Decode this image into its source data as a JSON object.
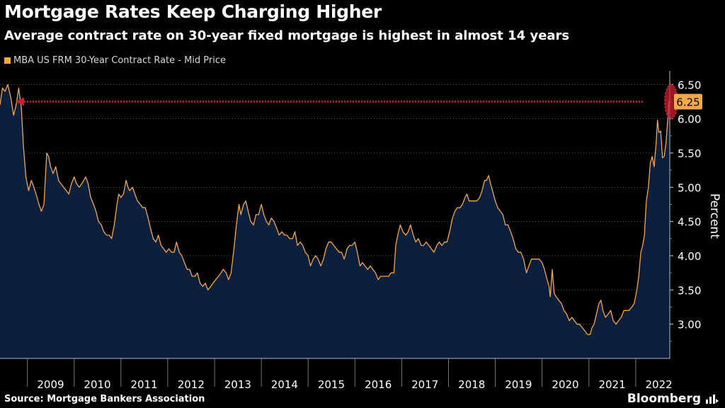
{
  "header": {
    "title": "Mortgage Rates Keep Charging Higher",
    "subtitle": "Average contract rate on 30-year fixed mortgage is highest in almost 14 years"
  },
  "legend": {
    "label": "MBA US FRM 30-Year Contract Rate - Mid Price",
    "color": "#f2a74b"
  },
  "footer": {
    "source": "Source: Mortgage Bankers Association",
    "brand": "Bloomberg",
    "brand_icon": "bloomberg-terminal-icon"
  },
  "colors": {
    "background": "#000000",
    "area_fill": "#0c1f3d",
    "line": "#f2a74b",
    "grid": "#5a5a5a",
    "annotation": "#cc1f2d",
    "last_value_badge": "#f2a74b"
  },
  "chart_data": {
    "type": "area",
    "title": "Mortgage Rates Keep Charging Higher",
    "ylabel": "Percent",
    "ylim": [
      2.5,
      6.7
    ],
    "yticks": [
      "3.00",
      "3.50",
      "4.00",
      "4.50",
      "5.00",
      "5.50",
      "6.00",
      "6.50"
    ],
    "xlim": [
      "2008-06-01",
      "2022-09-24"
    ],
    "xticks": [
      "2009",
      "2010",
      "2011",
      "2012",
      "2013",
      "2014",
      "2015",
      "2016",
      "2017",
      "2018",
      "2019",
      "2020",
      "2021",
      "2022"
    ],
    "grid": true,
    "last_value_label": "6.25",
    "annotation": "Arrow from the latest 6.25 reading back to the equal level in 2008, circled at the right edge",
    "series": [
      {
        "name": "MBA US FRM 30-Year Contract Rate - Mid Price",
        "points": [
          [
            "2008-06-01",
            6.2
          ],
          [
            "2008-06-20",
            6.45
          ],
          [
            "2008-07-10",
            6.4
          ],
          [
            "2008-08-01",
            6.5
          ],
          [
            "2008-08-25",
            6.3
          ],
          [
            "2008-09-15",
            6.05
          ],
          [
            "2008-10-05",
            6.2
          ],
          [
            "2008-10-25",
            6.45
          ],
          [
            "2008-11-15",
            6.15
          ],
          [
            "2008-12-01",
            5.6
          ],
          [
            "2008-12-20",
            5.15
          ],
          [
            "2009-01-10",
            4.95
          ],
          [
            "2009-02-01",
            5.1
          ],
          [
            "2009-02-20",
            5.0
          ],
          [
            "2009-03-10",
            4.9
          ],
          [
            "2009-04-01",
            4.75
          ],
          [
            "2009-04-20",
            4.65
          ],
          [
            "2009-05-10",
            4.75
          ],
          [
            "2009-06-01",
            5.5
          ],
          [
            "2009-06-15",
            5.45
          ],
          [
            "2009-07-01",
            5.3
          ],
          [
            "2009-07-20",
            5.2
          ],
          [
            "2009-08-10",
            5.3
          ],
          [
            "2009-09-01",
            5.1
          ],
          [
            "2009-09-20",
            5.05
          ],
          [
            "2009-10-10",
            5.0
          ],
          [
            "2009-11-01",
            4.95
          ],
          [
            "2009-11-20",
            4.9
          ],
          [
            "2009-12-10",
            5.05
          ],
          [
            "2010-01-01",
            5.15
          ],
          [
            "2010-01-20",
            5.05
          ],
          [
            "2010-02-10",
            5.0
          ],
          [
            "2010-03-01",
            5.05
          ],
          [
            "2010-04-01",
            5.15
          ],
          [
            "2010-04-20",
            5.05
          ],
          [
            "2010-05-10",
            4.85
          ],
          [
            "2010-06-01",
            4.75
          ],
          [
            "2010-06-20",
            4.65
          ],
          [
            "2010-07-10",
            4.5
          ],
          [
            "2010-08-01",
            4.45
          ],
          [
            "2010-08-20",
            4.35
          ],
          [
            "2010-09-10",
            4.3
          ],
          [
            "2010-10-01",
            4.3
          ],
          [
            "2010-10-20",
            4.25
          ],
          [
            "2010-11-10",
            4.45
          ],
          [
            "2010-12-01",
            4.75
          ],
          [
            "2010-12-15",
            4.9
          ],
          [
            "2011-01-01",
            4.85
          ],
          [
            "2011-01-20",
            4.9
          ],
          [
            "2011-02-10",
            5.1
          ],
          [
            "2011-02-25",
            5.0
          ],
          [
            "2011-03-10",
            4.95
          ],
          [
            "2011-04-01",
            5.0
          ],
          [
            "2011-04-20",
            4.9
          ],
          [
            "2011-05-10",
            4.8
          ],
          [
            "2011-06-01",
            4.75
          ],
          [
            "2011-06-20",
            4.7
          ],
          [
            "2011-07-10",
            4.7
          ],
          [
            "2011-08-01",
            4.55
          ],
          [
            "2011-08-20",
            4.4
          ],
          [
            "2011-09-10",
            4.25
          ],
          [
            "2011-10-01",
            4.2
          ],
          [
            "2011-10-20",
            4.3
          ],
          [
            "2011-11-10",
            4.15
          ],
          [
            "2011-12-01",
            4.1
          ],
          [
            "2011-12-20",
            4.05
          ],
          [
            "2012-01-10",
            4.1
          ],
          [
            "2012-02-01",
            4.05
          ],
          [
            "2012-02-20",
            4.05
          ],
          [
            "2012-03-10",
            4.2
          ],
          [
            "2012-04-01",
            4.05
          ],
          [
            "2012-04-20",
            4.0
          ],
          [
            "2012-05-10",
            3.9
          ],
          [
            "2012-06-01",
            3.8
          ],
          [
            "2012-06-20",
            3.8
          ],
          [
            "2012-07-10",
            3.7
          ],
          [
            "2012-08-01",
            3.7
          ],
          [
            "2012-08-20",
            3.75
          ],
          [
            "2012-09-10",
            3.6
          ],
          [
            "2012-10-01",
            3.55
          ],
          [
            "2012-10-20",
            3.6
          ],
          [
            "2012-11-10",
            3.5
          ],
          [
            "2012-12-01",
            3.55
          ],
          [
            "2012-12-20",
            3.6
          ],
          [
            "2013-01-10",
            3.65
          ],
          [
            "2013-02-01",
            3.7
          ],
          [
            "2013-02-20",
            3.75
          ],
          [
            "2013-03-10",
            3.8
          ],
          [
            "2013-04-01",
            3.75
          ],
          [
            "2013-04-20",
            3.65
          ],
          [
            "2013-05-10",
            3.75
          ],
          [
            "2013-06-01",
            4.1
          ],
          [
            "2013-06-20",
            4.45
          ],
          [
            "2013-07-10",
            4.75
          ],
          [
            "2013-07-25",
            4.6
          ],
          [
            "2013-08-15",
            4.75
          ],
          [
            "2013-09-01",
            4.8
          ],
          [
            "2013-09-20",
            4.65
          ],
          [
            "2013-10-10",
            4.5
          ],
          [
            "2013-11-01",
            4.45
          ],
          [
            "2013-11-20",
            4.6
          ],
          [
            "2013-12-10",
            4.6
          ],
          [
            "2014-01-01",
            4.75
          ],
          [
            "2014-01-20",
            4.6
          ],
          [
            "2014-02-10",
            4.5
          ],
          [
            "2014-03-01",
            4.45
          ],
          [
            "2014-03-20",
            4.55
          ],
          [
            "2014-04-10",
            4.5
          ],
          [
            "2014-05-01",
            4.4
          ],
          [
            "2014-05-20",
            4.3
          ],
          [
            "2014-06-10",
            4.35
          ],
          [
            "2014-07-01",
            4.3
          ],
          [
            "2014-07-20",
            4.3
          ],
          [
            "2014-08-10",
            4.25
          ],
          [
            "2014-09-01",
            4.25
          ],
          [
            "2014-09-20",
            4.35
          ],
          [
            "2014-10-10",
            4.15
          ],
          [
            "2014-11-01",
            4.2
          ],
          [
            "2014-11-20",
            4.15
          ],
          [
            "2014-12-10",
            4.05
          ],
          [
            "2015-01-01",
            4.0
          ],
          [
            "2015-01-20",
            3.85
          ],
          [
            "2015-02-10",
            3.95
          ],
          [
            "2015-03-01",
            4.0
          ],
          [
            "2015-03-20",
            3.95
          ],
          [
            "2015-04-10",
            3.85
          ],
          [
            "2015-05-01",
            3.95
          ],
          [
            "2015-05-20",
            4.1
          ],
          [
            "2015-06-10",
            4.2
          ],
          [
            "2015-07-01",
            4.2
          ],
          [
            "2015-07-20",
            4.15
          ],
          [
            "2015-08-10",
            4.1
          ],
          [
            "2015-09-01",
            4.05
          ],
          [
            "2015-09-20",
            4.05
          ],
          [
            "2015-10-10",
            3.95
          ],
          [
            "2015-11-01",
            4.1
          ],
          [
            "2015-11-20",
            4.15
          ],
          [
            "2015-12-10",
            4.15
          ],
          [
            "2016-01-01",
            4.2
          ],
          [
            "2016-01-20",
            4.05
          ],
          [
            "2016-02-10",
            3.85
          ],
          [
            "2016-03-01",
            3.9
          ],
          [
            "2016-03-20",
            3.85
          ],
          [
            "2016-04-10",
            3.8
          ],
          [
            "2016-05-01",
            3.85
          ],
          [
            "2016-05-20",
            3.8
          ],
          [
            "2016-06-10",
            3.75
          ],
          [
            "2016-07-01",
            3.65
          ],
          [
            "2016-07-20",
            3.7
          ],
          [
            "2016-08-10",
            3.7
          ],
          [
            "2016-09-01",
            3.7
          ],
          [
            "2016-09-20",
            3.7
          ],
          [
            "2016-10-10",
            3.75
          ],
          [
            "2016-11-01",
            3.75
          ],
          [
            "2016-11-15",
            4.15
          ],
          [
            "2016-12-01",
            4.3
          ],
          [
            "2016-12-20",
            4.45
          ],
          [
            "2017-01-10",
            4.35
          ],
          [
            "2017-02-01",
            4.3
          ],
          [
            "2017-02-20",
            4.35
          ],
          [
            "2017-03-10",
            4.45
          ],
          [
            "2017-04-01",
            4.3
          ],
          [
            "2017-04-20",
            4.2
          ],
          [
            "2017-05-10",
            4.25
          ],
          [
            "2017-06-01",
            4.15
          ],
          [
            "2017-06-20",
            4.15
          ],
          [
            "2017-07-10",
            4.2
          ],
          [
            "2017-08-01",
            4.15
          ],
          [
            "2017-08-20",
            4.1
          ],
          [
            "2017-09-10",
            4.05
          ],
          [
            "2017-10-01",
            4.15
          ],
          [
            "2017-10-20",
            4.2
          ],
          [
            "2017-11-10",
            4.15
          ],
          [
            "2017-12-01",
            4.2
          ],
          [
            "2017-12-20",
            4.2
          ],
          [
            "2018-01-10",
            4.35
          ],
          [
            "2018-02-01",
            4.55
          ],
          [
            "2018-02-20",
            4.65
          ],
          [
            "2018-03-10",
            4.7
          ],
          [
            "2018-04-01",
            4.7
          ],
          [
            "2018-04-20",
            4.75
          ],
          [
            "2018-05-10",
            4.85
          ],
          [
            "2018-05-25",
            4.9
          ],
          [
            "2018-06-10",
            4.8
          ],
          [
            "2018-07-01",
            4.8
          ],
          [
            "2018-07-20",
            4.8
          ],
          [
            "2018-08-10",
            4.8
          ],
          [
            "2018-09-01",
            4.85
          ],
          [
            "2018-09-20",
            4.95
          ],
          [
            "2018-10-10",
            5.1
          ],
          [
            "2018-10-25",
            5.1
          ],
          [
            "2018-11-10",
            5.17
          ],
          [
            "2018-11-25",
            5.05
          ],
          [
            "2018-12-10",
            4.95
          ],
          [
            "2019-01-01",
            4.8
          ],
          [
            "2019-01-20",
            4.7
          ],
          [
            "2019-02-10",
            4.65
          ],
          [
            "2019-03-01",
            4.6
          ],
          [
            "2019-03-20",
            4.45
          ],
          [
            "2019-04-10",
            4.45
          ],
          [
            "2019-05-01",
            4.35
          ],
          [
            "2019-05-20",
            4.25
          ],
          [
            "2019-06-10",
            4.1
          ],
          [
            "2019-07-01",
            4.05
          ],
          [
            "2019-07-20",
            4.05
          ],
          [
            "2019-08-10",
            3.95
          ],
          [
            "2019-09-01",
            3.75
          ],
          [
            "2019-09-20",
            3.85
          ],
          [
            "2019-10-10",
            3.95
          ],
          [
            "2019-11-01",
            3.95
          ],
          [
            "2019-11-20",
            3.95
          ],
          [
            "2019-12-10",
            3.95
          ],
          [
            "2020-01-01",
            3.9
          ],
          [
            "2020-01-20",
            3.8
          ],
          [
            "2020-02-10",
            3.65
          ],
          [
            "2020-02-25",
            3.55
          ],
          [
            "2020-03-05",
            3.4
          ],
          [
            "2020-03-20",
            3.8
          ],
          [
            "2020-04-05",
            3.45
          ],
          [
            "2020-04-20",
            3.4
          ],
          [
            "2020-05-10",
            3.35
          ],
          [
            "2020-06-01",
            3.3
          ],
          [
            "2020-06-20",
            3.2
          ],
          [
            "2020-07-10",
            3.15
          ],
          [
            "2020-08-01",
            3.05
          ],
          [
            "2020-08-20",
            3.1
          ],
          [
            "2020-09-10",
            3.05
          ],
          [
            "2020-10-01",
            3.0
          ],
          [
            "2020-10-20",
            3.0
          ],
          [
            "2020-11-10",
            2.95
          ],
          [
            "2020-12-01",
            2.9
          ],
          [
            "2020-12-20",
            2.85
          ],
          [
            "2021-01-10",
            2.85
          ],
          [
            "2021-01-25",
            2.95
          ],
          [
            "2021-02-10",
            3.0
          ],
          [
            "2021-03-01",
            3.15
          ],
          [
            "2021-03-20",
            3.3
          ],
          [
            "2021-04-05",
            3.35
          ],
          [
            "2021-04-20",
            3.2
          ],
          [
            "2021-05-10",
            3.1
          ],
          [
            "2021-06-01",
            3.15
          ],
          [
            "2021-06-20",
            3.2
          ],
          [
            "2021-07-10",
            3.05
          ],
          [
            "2021-08-01",
            3.0
          ],
          [
            "2021-08-20",
            3.05
          ],
          [
            "2021-09-10",
            3.1
          ],
          [
            "2021-10-01",
            3.2
          ],
          [
            "2021-10-20",
            3.2
          ],
          [
            "2021-11-10",
            3.2
          ],
          [
            "2021-12-01",
            3.25
          ],
          [
            "2021-12-20",
            3.3
          ],
          [
            "2022-01-10",
            3.5
          ],
          [
            "2022-01-25",
            3.7
          ],
          [
            "2022-02-10",
            4.05
          ],
          [
            "2022-02-25",
            4.15
          ],
          [
            "2022-03-10",
            4.3
          ],
          [
            "2022-03-25",
            4.8
          ],
          [
            "2022-04-10",
            5.0
          ],
          [
            "2022-04-25",
            5.35
          ],
          [
            "2022-05-10",
            5.45
          ],
          [
            "2022-05-25",
            5.3
          ],
          [
            "2022-06-10",
            5.65
          ],
          [
            "2022-06-20",
            5.98
          ],
          [
            "2022-07-01",
            5.8
          ],
          [
            "2022-07-15",
            5.82
          ],
          [
            "2022-07-29",
            5.43
          ],
          [
            "2022-08-12",
            5.45
          ],
          [
            "2022-08-26",
            5.66
          ],
          [
            "2022-09-09",
            6.01
          ],
          [
            "2022-09-16",
            6.25
          ],
          [
            "2022-09-23",
            6.25
          ]
        ]
      }
    ]
  }
}
